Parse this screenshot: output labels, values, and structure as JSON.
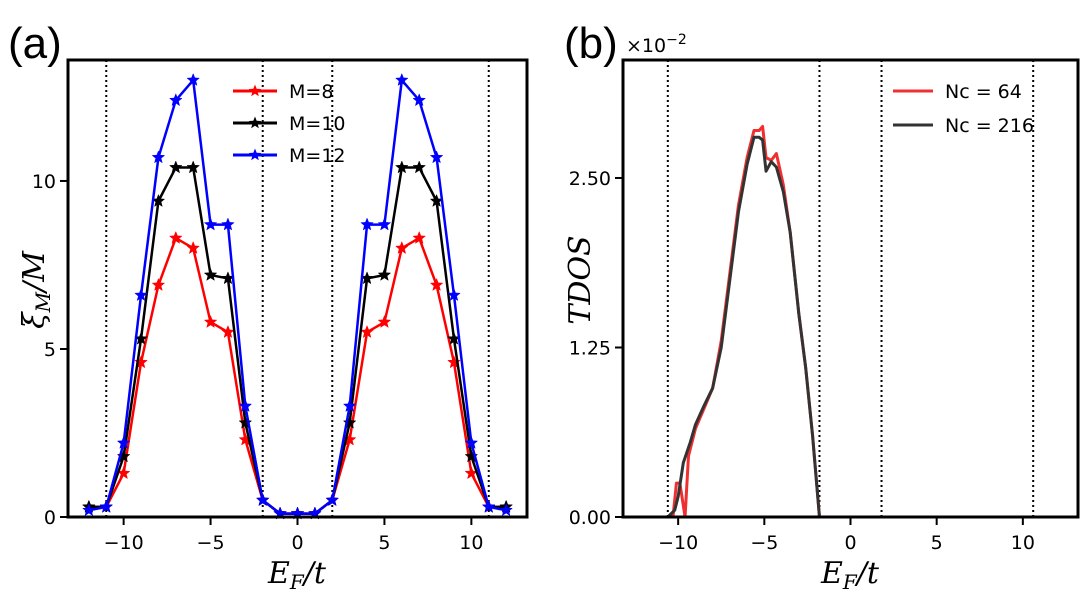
{
  "chart_data": [
    {
      "panel_label": "(a)",
      "type": "line",
      "xlabel_main": "E",
      "xlabel_sub": "F",
      "xlabel_rest": "/t",
      "ylabel_main": "ξ",
      "ylabel_sub": "M",
      "ylabel_rest": "/M",
      "xlim": [
        -13.2,
        13.2
      ],
      "ylim": [
        0,
        13.6
      ],
      "xticks": [
        -10,
        -5,
        0,
        5,
        10
      ],
      "xtick_labels": [
        "−10",
        "−5",
        "0",
        "5",
        "10"
      ],
      "yticks": [
        0,
        5,
        10
      ],
      "ytick_labels": [
        "0",
        "5",
        "10"
      ],
      "vlines": [
        -11,
        -2,
        2,
        11
      ],
      "legend_position": "top-center",
      "x": [
        -12,
        -11,
        -10,
        -9,
        -8,
        -7,
        -6,
        -5,
        -4,
        -3,
        -2,
        -1,
        0,
        1,
        2,
        3,
        4,
        5,
        6,
        7,
        8,
        9,
        10,
        11,
        12
      ],
      "series": [
        {
          "name": "M=8",
          "color": "#ff0000",
          "values": [
            0.3,
            0.3,
            1.3,
            4.6,
            6.9,
            8.3,
            8.0,
            5.8,
            5.5,
            2.3,
            0.5,
            0.1,
            0.1,
            0.1,
            0.5,
            2.3,
            5.5,
            5.8,
            8.0,
            8.3,
            6.9,
            4.6,
            1.3,
            0.3,
            0.3
          ]
        },
        {
          "name": "M=10",
          "color": "#000000",
          "values": [
            0.3,
            0.3,
            1.8,
            5.3,
            9.4,
            10.4,
            10.4,
            7.2,
            7.1,
            2.8,
            0.5,
            0.1,
            0.1,
            0.1,
            0.5,
            2.8,
            7.1,
            7.2,
            10.4,
            10.4,
            9.4,
            5.3,
            1.8,
            0.3,
            0.3
          ]
        },
        {
          "name": "M=12",
          "color": "#0000ff",
          "values": [
            0.2,
            0.3,
            2.2,
            6.6,
            10.7,
            12.4,
            13.0,
            8.7,
            8.7,
            3.3,
            0.5,
            0.1,
            0.1,
            0.1,
            0.5,
            3.3,
            8.7,
            8.7,
            13.0,
            12.4,
            10.7,
            6.6,
            2.2,
            0.3,
            0.2
          ]
        }
      ]
    },
    {
      "panel_label": "(b)",
      "type": "line",
      "offset_base": "×10",
      "offset_exp": "−2",
      "xlabel_main": "E",
      "xlabel_sub": "F",
      "xlabel_rest": "/t",
      "ylabel": "TDOS",
      "xlim": [
        -13.2,
        13.2
      ],
      "ylim": [
        0,
        0.0337
      ],
      "xticks": [
        -10,
        -5,
        0,
        5,
        10
      ],
      "xtick_labels": [
        "−10",
        "−5",
        "0",
        "5",
        "10"
      ],
      "yticks": [
        0,
        0.0125,
        0.025
      ],
      "ytick_labels": [
        "0.00",
        "1.25",
        "2.50"
      ],
      "vlines": [
        -10.6,
        -1.8,
        1.8,
        10.6
      ],
      "legend_position": "top-right",
      "series": [
        {
          "name": "Nc = 64",
          "color": "#f03030",
          "x": [
            -10.6,
            -10.3,
            -10.1,
            -9.9,
            -9.6,
            -9.4,
            -9.0,
            -8.5,
            -8.0,
            -7.5,
            -7.0,
            -6.5,
            -6.0,
            -5.6,
            -5.3,
            -5.1,
            -4.9,
            -4.6,
            -4.3,
            -3.9,
            -3.5,
            -3.0,
            -2.6,
            -2.2,
            -1.9,
            -1.8
          ],
          "values": [
            0.0,
            0.0,
            0.0025,
            0.0025,
            0.0,
            0.0045,
            0.0065,
            0.008,
            0.0095,
            0.013,
            0.018,
            0.023,
            0.0265,
            0.0285,
            0.0285,
            0.0288,
            0.0265,
            0.0263,
            0.0268,
            0.0245,
            0.021,
            0.015,
            0.011,
            0.006,
            0.0015,
            0.0
          ]
        },
        {
          "name": "Nc = 216",
          "color": "#333333",
          "x": [
            -10.6,
            -10.2,
            -10.0,
            -9.7,
            -9.3,
            -9.0,
            -8.5,
            -8.0,
            -7.5,
            -7.0,
            -6.5,
            -6.0,
            -5.6,
            -5.3,
            -5.1,
            -4.9,
            -4.6,
            -4.3,
            -3.9,
            -3.5,
            -3.0,
            -2.6,
            -2.2,
            -1.9,
            -1.8
          ],
          "values": [
            0.0,
            0.0005,
            0.0015,
            0.004,
            0.0055,
            0.0068,
            0.0082,
            0.0095,
            0.0125,
            0.0175,
            0.0225,
            0.026,
            0.028,
            0.028,
            0.0278,
            0.0255,
            0.0262,
            0.0258,
            0.024,
            0.021,
            0.015,
            0.011,
            0.006,
            0.0015,
            0.0
          ]
        }
      ]
    }
  ]
}
